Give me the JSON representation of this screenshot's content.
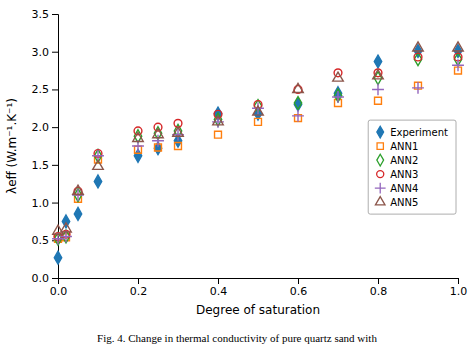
{
  "chart_data": {
    "type": "scatter",
    "x_label": "Degree of saturation",
    "y_label": "λeff (W.m⁻¹.K⁻¹)",
    "caption": "Fig. 4. Change in thermal conductivity of pure quartz sand with",
    "x": [
      0.0,
      0.02,
      0.05,
      0.1,
      0.2,
      0.25,
      0.3,
      0.4,
      0.5,
      0.6,
      0.7,
      0.8,
      0.9,
      1.0
    ],
    "series": [
      {
        "name": "Experiment",
        "marker": "diamond",
        "values": [
          0.27,
          0.75,
          0.85,
          1.28,
          1.62,
          1.72,
          1.82,
          2.18,
          2.18,
          2.3,
          2.45,
          2.87,
          3.01,
          3.01
        ]
      },
      {
        "name": "ANN1",
        "marker": "square-open",
        "values": [
          0.52,
          0.54,
          1.05,
          1.57,
          1.7,
          1.73,
          1.75,
          1.9,
          2.07,
          2.12,
          2.32,
          2.35,
          2.55,
          2.75
        ]
      },
      {
        "name": "ANN2",
        "marker": "diamond-open",
        "values": [
          0.52,
          0.55,
          1.1,
          1.62,
          1.88,
          1.92,
          1.95,
          2.1,
          2.28,
          2.32,
          2.42,
          2.65,
          2.9,
          2.9
        ]
      },
      {
        "name": "ANN3",
        "marker": "circle-open",
        "values": [
          0.55,
          0.58,
          1.15,
          1.65,
          1.95,
          2.0,
          2.05,
          2.17,
          2.3,
          2.5,
          2.72,
          2.72,
          2.93,
          2.93
        ]
      },
      {
        "name": "ANN4",
        "marker": "plus",
        "values": [
          0.52,
          0.55,
          1.1,
          1.62,
          1.75,
          1.82,
          1.9,
          2.07,
          2.25,
          2.15,
          2.4,
          2.5,
          2.52,
          2.82
        ]
      },
      {
        "name": "ANN5",
        "marker": "triangle-open",
        "values": [
          0.62,
          0.65,
          1.15,
          1.48,
          1.85,
          1.9,
          1.92,
          2.07,
          2.2,
          2.5,
          2.65,
          2.68,
          3.05,
          3.05
        ]
      }
    ],
    "xlim": [
      0,
      1.0
    ],
    "ylim": [
      0,
      3.5
    ],
    "xticks": [
      {
        "value": 0,
        "label": "0.0"
      },
      0.2,
      0.4,
      0.6,
      0.8,
      {
        "value": 1.0,
        "label": "1.0"
      }
    ],
    "yticks": [
      {
        "value": 0,
        "label": "0.0"
      },
      0.5,
      {
        "value": 1.0,
        "label": "1.0"
      },
      1.5,
      {
        "value": 2.0,
        "label": "2.0"
      },
      2.5,
      {
        "value": 3.0,
        "label": "3.0"
      },
      3.5
    ],
    "grid": false,
    "legend": "right"
  }
}
